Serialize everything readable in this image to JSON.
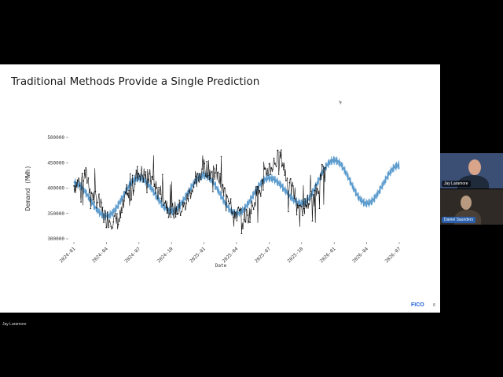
{
  "slide": {
    "title": "Traditional Methods Provide a Single Prediction",
    "logo": "FICO",
    "page_number": "8"
  },
  "participants": [
    {
      "name": "Jay Laramore"
    },
    {
      "name": "Daniel Saunders"
    }
  ],
  "bottom_label": "Jay Laramore",
  "chart_data": {
    "type": "line",
    "xlabel": "Date",
    "ylabel": "Demand (MWh)",
    "ylim": [
      300000,
      500000
    ],
    "yticks": [
      "500000",
      "450000",
      "400000",
      "350000",
      "300000"
    ],
    "xticks": [
      "2024-01",
      "2024-04",
      "2024-07",
      "2024-10",
      "2025-01",
      "2025-04",
      "2025-07",
      "2025-10",
      "2026-01",
      "2026-04",
      "2026-07"
    ],
    "series": [
      {
        "color": "#111111",
        "x": [
          "2024-01",
          "2024-02",
          "2024-03",
          "2024-04",
          "2024-05",
          "2024-06",
          "2024-07",
          "2024-08",
          "2024-09",
          "2024-10",
          "2024-11",
          "2024-12",
          "2025-01",
          "2025-02",
          "2025-03",
          "2025-04",
          "2025-05",
          "2025-06",
          "2025-07",
          "2025-08",
          "2025-09",
          "2025-10",
          "2025-11",
          "2025-12"
        ],
        "y": [
          405000,
          425000,
          380000,
          340000,
          335000,
          380000,
          430000,
          420000,
          390000,
          355000,
          360000,
          400000,
          440000,
          430000,
          390000,
          350000,
          345000,
          390000,
          440000,
          460000,
          400000,
          360000,
          380000,
          430000
        ]
      },
      {
        "color": "#4a90c8",
        "x": [
          "2024-01",
          "2024-04",
          "2024-07",
          "2024-10",
          "2025-01",
          "2025-04",
          "2025-07",
          "2025-10",
          "2026-01",
          "2026-04",
          "2026-07"
        ],
        "y": [
          410000,
          345000,
          420000,
          355000,
          425000,
          350000,
          420000,
          370000,
          455000,
          370000,
          445000
        ]
      }
    ],
    "colors": {
      "actual": "#111111",
      "forecast": "#4a90c8"
    }
  }
}
